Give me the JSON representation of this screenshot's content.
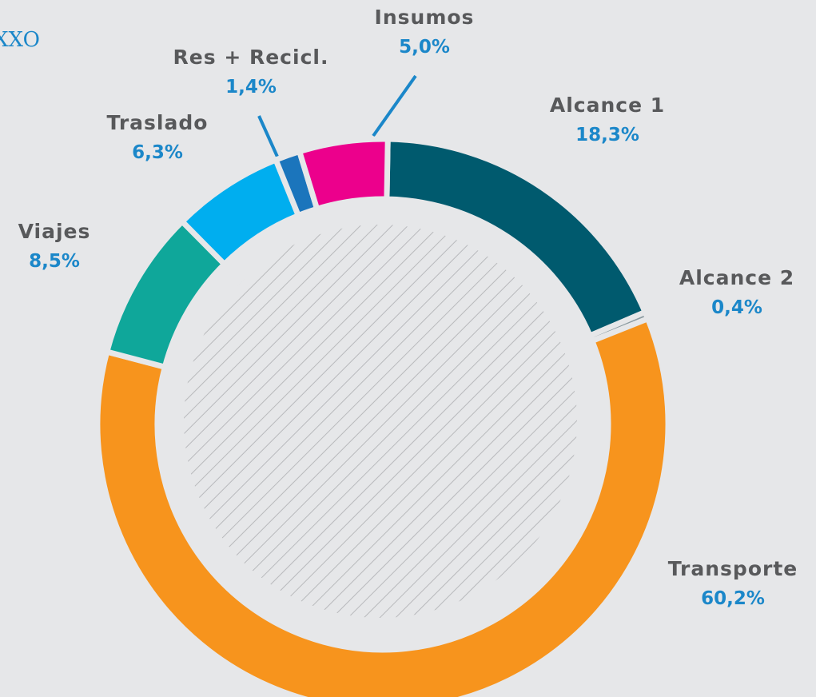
{
  "chart_data": {
    "type": "donut",
    "title": "XXO",
    "categories": [
      "Alcance 1",
      "Alcance 2",
      "Transporte",
      "Viajes",
      "Traslado",
      "Res + Recicl.",
      "Insumos"
    ],
    "values": [
      18.3,
      0.4,
      60.2,
      8.5,
      6.3,
      1.4,
      5.0
    ],
    "value_labels": [
      "18,3%",
      "0,4%",
      "60,2%",
      "8,5%",
      "6,3%",
      "1,4%",
      "5,0%"
    ],
    "colors": [
      "#005a6e",
      "#8a9aa0",
      "#f7941d",
      "#0fa79a",
      "#00aeef",
      "#1b75bc",
      "#ec008c"
    ]
  }
}
